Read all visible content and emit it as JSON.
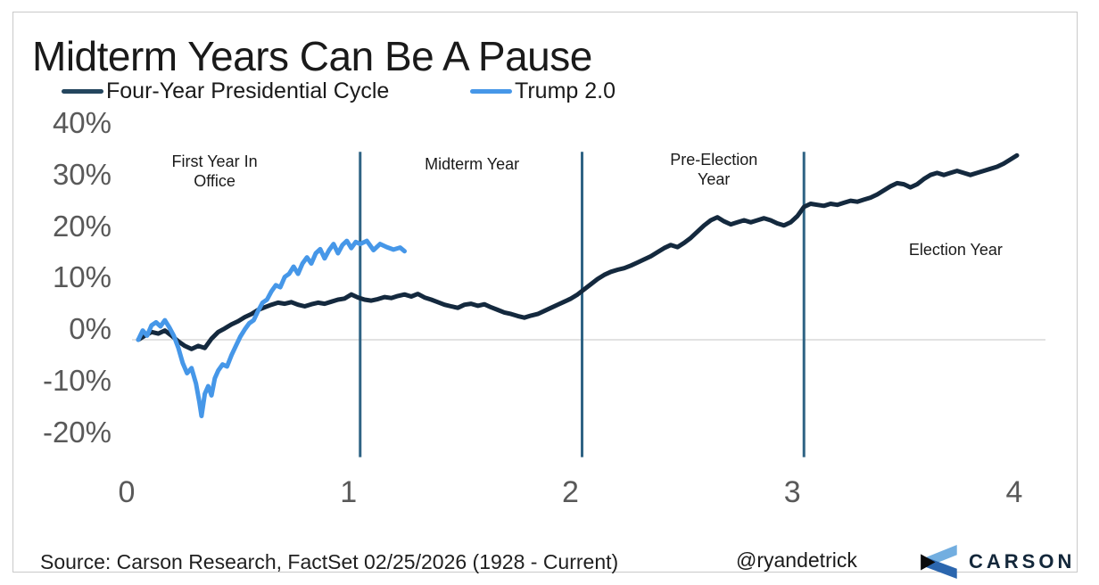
{
  "title": "Midterm Years Can Be A Pause",
  "legend": {
    "items": [
      {
        "label": "Four-Year Presidential Cycle",
        "color": "#24465e"
      },
      {
        "label": "Trump 2.0",
        "color": "#4697e8"
      }
    ]
  },
  "footer": {
    "source": "Source: Carson Research, FactSet 02/25/2026   (1928 - Current)",
    "handle": "@ryandetrick",
    "brand": "CARSON"
  },
  "logo_colors": {
    "light_blue": "#72aee0",
    "mid_blue": "#2b66ae",
    "black": "#0b0b0b"
  },
  "chart_data": {
    "type": "line",
    "title": "Midterm Years Can Be A Pause",
    "xlabel": "",
    "ylabel": "",
    "xlim": [
      0,
      4
    ],
    "ylim": [
      -20,
      40
    ],
    "grid": "zero-line-only",
    "zero_gridline_color": "#d9d9d9",
    "separator_color": "#2f6384",
    "separators_x": [
      1,
      2,
      3
    ],
    "x_ticks": [
      {
        "label": "0",
        "value": 0
      },
      {
        "label": "1",
        "value": 1
      },
      {
        "label": "2",
        "value": 2
      },
      {
        "label": "3",
        "value": 3
      },
      {
        "label": "4",
        "value": 4
      }
    ],
    "y_ticks": [
      {
        "label": "40%",
        "value": 40
      },
      {
        "label": "30%",
        "value": 30
      },
      {
        "label": "20%",
        "value": 20
      },
      {
        "label": "10%",
        "value": 10
      },
      {
        "label": "0%",
        "value": 0
      },
      {
        "label": "-10%",
        "value": -10
      },
      {
        "label": "-20%",
        "value": -20
      }
    ],
    "annotations": [
      {
        "text": "First Year In\nOffice",
        "x": 0.34,
        "y": 36.6
      },
      {
        "text": "Midterm Year",
        "x": 1.5,
        "y": 36.0
      },
      {
        "text": "Pre-Election\nYear",
        "x": 2.59,
        "y": 36.8
      },
      {
        "text": "Election Year",
        "x": 3.68,
        "y": 19.4
      }
    ],
    "series": [
      {
        "name": "Four-Year Presidential Cycle",
        "color": "#14293e",
        "points": [
          [
            0,
            0
          ],
          [
            0.03,
            0.8
          ],
          [
            0.06,
            1.5
          ],
          [
            0.09,
            1.2
          ],
          [
            0.12,
            1.8
          ],
          [
            0.15,
            0.8
          ],
          [
            0.18,
            -0.3
          ],
          [
            0.21,
            -1.2
          ],
          [
            0.24,
            -1.8
          ],
          [
            0.27,
            -1.2
          ],
          [
            0.3,
            -1.6
          ],
          [
            0.33,
            0.2
          ],
          [
            0.36,
            1.5
          ],
          [
            0.39,
            2.2
          ],
          [
            0.42,
            3.0
          ],
          [
            0.45,
            3.6
          ],
          [
            0.48,
            4.4
          ],
          [
            0.51,
            5.0
          ],
          [
            0.54,
            5.8
          ],
          [
            0.57,
            6.3
          ],
          [
            0.6,
            6.8
          ],
          [
            0.63,
            7.2
          ],
          [
            0.66,
            7.0
          ],
          [
            0.69,
            7.3
          ],
          [
            0.72,
            6.8
          ],
          [
            0.75,
            6.5
          ],
          [
            0.78,
            6.9
          ],
          [
            0.81,
            7.2
          ],
          [
            0.84,
            7.0
          ],
          [
            0.87,
            7.4
          ],
          [
            0.9,
            7.8
          ],
          [
            0.93,
            8.0
          ],
          [
            0.96,
            8.8
          ],
          [
            0.99,
            8.2
          ],
          [
            1.02,
            7.8
          ],
          [
            1.05,
            7.6
          ],
          [
            1.08,
            7.9
          ],
          [
            1.11,
            8.3
          ],
          [
            1.14,
            8.1
          ],
          [
            1.17,
            8.5
          ],
          [
            1.2,
            8.8
          ],
          [
            1.23,
            8.4
          ],
          [
            1.26,
            8.9
          ],
          [
            1.29,
            8.2
          ],
          [
            1.32,
            7.8
          ],
          [
            1.35,
            7.3
          ],
          [
            1.38,
            6.8
          ],
          [
            1.41,
            6.5
          ],
          [
            1.44,
            6.2
          ],
          [
            1.47,
            6.8
          ],
          [
            1.5,
            7.0
          ],
          [
            1.53,
            6.6
          ],
          [
            1.56,
            6.9
          ],
          [
            1.59,
            6.3
          ],
          [
            1.62,
            5.8
          ],
          [
            1.65,
            5.3
          ],
          [
            1.68,
            5.0
          ],
          [
            1.71,
            4.6
          ],
          [
            1.74,
            4.3
          ],
          [
            1.77,
            4.7
          ],
          [
            1.8,
            5.0
          ],
          [
            1.83,
            5.6
          ],
          [
            1.86,
            6.2
          ],
          [
            1.89,
            6.8
          ],
          [
            1.92,
            7.4
          ],
          [
            1.95,
            8.0
          ],
          [
            1.98,
            8.8
          ],
          [
            2.01,
            9.8
          ],
          [
            2.04,
            10.8
          ],
          [
            2.07,
            11.8
          ],
          [
            2.1,
            12.6
          ],
          [
            2.13,
            13.2
          ],
          [
            2.16,
            13.6
          ],
          [
            2.19,
            13.9
          ],
          [
            2.22,
            14.4
          ],
          [
            2.25,
            15.0
          ],
          [
            2.28,
            15.6
          ],
          [
            2.31,
            16.2
          ],
          [
            2.34,
            17.0
          ],
          [
            2.37,
            17.8
          ],
          [
            2.4,
            18.4
          ],
          [
            2.43,
            18.0
          ],
          [
            2.46,
            18.8
          ],
          [
            2.49,
            19.8
          ],
          [
            2.52,
            21.0
          ],
          [
            2.55,
            22.2
          ],
          [
            2.58,
            23.2
          ],
          [
            2.61,
            23.8
          ],
          [
            2.64,
            23.0
          ],
          [
            2.67,
            22.4
          ],
          [
            2.7,
            22.8
          ],
          [
            2.73,
            23.2
          ],
          [
            2.76,
            22.8
          ],
          [
            2.79,
            23.2
          ],
          [
            2.82,
            23.6
          ],
          [
            2.85,
            23.2
          ],
          [
            2.88,
            22.6
          ],
          [
            2.91,
            22.2
          ],
          [
            2.94,
            22.8
          ],
          [
            2.97,
            24.0
          ],
          [
            3.0,
            25.8
          ],
          [
            3.03,
            26.4
          ],
          [
            3.06,
            26.2
          ],
          [
            3.09,
            26.0
          ],
          [
            3.12,
            26.4
          ],
          [
            3.15,
            26.2
          ],
          [
            3.18,
            26.6
          ],
          [
            3.21,
            27.0
          ],
          [
            3.24,
            26.8
          ],
          [
            3.27,
            27.2
          ],
          [
            3.3,
            27.6
          ],
          [
            3.33,
            28.2
          ],
          [
            3.36,
            29.0
          ],
          [
            3.39,
            29.8
          ],
          [
            3.42,
            30.4
          ],
          [
            3.45,
            30.2
          ],
          [
            3.48,
            29.6
          ],
          [
            3.51,
            30.2
          ],
          [
            3.54,
            31.2
          ],
          [
            3.57,
            32.0
          ],
          [
            3.6,
            32.4
          ],
          [
            3.63,
            32.0
          ],
          [
            3.66,
            32.4
          ],
          [
            3.69,
            32.8
          ],
          [
            3.72,
            32.4
          ],
          [
            3.75,
            32.0
          ],
          [
            3.78,
            32.4
          ],
          [
            3.81,
            32.8
          ],
          [
            3.84,
            33.2
          ],
          [
            3.87,
            33.6
          ],
          [
            3.9,
            34.2
          ],
          [
            3.93,
            35.0
          ],
          [
            3.96,
            35.8
          ]
        ]
      },
      {
        "name": "Trump 2.0",
        "color": "#4697e8",
        "points": [
          [
            0,
            0
          ],
          [
            0.02,
            1.8
          ],
          [
            0.04,
            0.8
          ],
          [
            0.06,
            2.8
          ],
          [
            0.08,
            3.4
          ],
          [
            0.1,
            2.6
          ],
          [
            0.12,
            3.8
          ],
          [
            0.14,
            2.4
          ],
          [
            0.16,
            0.8
          ],
          [
            0.18,
            -1.5
          ],
          [
            0.2,
            -4.5
          ],
          [
            0.22,
            -6.5
          ],
          [
            0.24,
            -5.5
          ],
          [
            0.26,
            -8.5
          ],
          [
            0.275,
            -12.0
          ],
          [
            0.285,
            -14.8
          ],
          [
            0.3,
            -10.5
          ],
          [
            0.315,
            -9.0
          ],
          [
            0.33,
            -10.8
          ],
          [
            0.345,
            -7.5
          ],
          [
            0.36,
            -6.0
          ],
          [
            0.38,
            -4.8
          ],
          [
            0.4,
            -5.2
          ],
          [
            0.42,
            -3.0
          ],
          [
            0.44,
            -1.2
          ],
          [
            0.46,
            0.6
          ],
          [
            0.48,
            2.0
          ],
          [
            0.5,
            3.2
          ],
          [
            0.52,
            3.8
          ],
          [
            0.54,
            5.6
          ],
          [
            0.56,
            7.2
          ],
          [
            0.58,
            7.8
          ],
          [
            0.6,
            9.4
          ],
          [
            0.62,
            10.6
          ],
          [
            0.64,
            10.2
          ],
          [
            0.66,
            12.2
          ],
          [
            0.68,
            12.8
          ],
          [
            0.7,
            14.2
          ],
          [
            0.72,
            12.8
          ],
          [
            0.74,
            14.8
          ],
          [
            0.76,
            16.0
          ],
          [
            0.78,
            14.8
          ],
          [
            0.8,
            16.8
          ],
          [
            0.82,
            17.6
          ],
          [
            0.84,
            15.8
          ],
          [
            0.86,
            17.4
          ],
          [
            0.88,
            18.6
          ],
          [
            0.9,
            16.8
          ],
          [
            0.92,
            18.4
          ],
          [
            0.94,
            19.2
          ],
          [
            0.96,
            17.8
          ],
          [
            0.98,
            19.0
          ],
          [
            1.0,
            18.6
          ],
          [
            1.03,
            19.2
          ],
          [
            1.06,
            17.4
          ],
          [
            1.09,
            18.6
          ],
          [
            1.12,
            18.0
          ],
          [
            1.15,
            17.5
          ],
          [
            1.18,
            17.9
          ],
          [
            1.2,
            17.2
          ]
        ]
      }
    ]
  }
}
